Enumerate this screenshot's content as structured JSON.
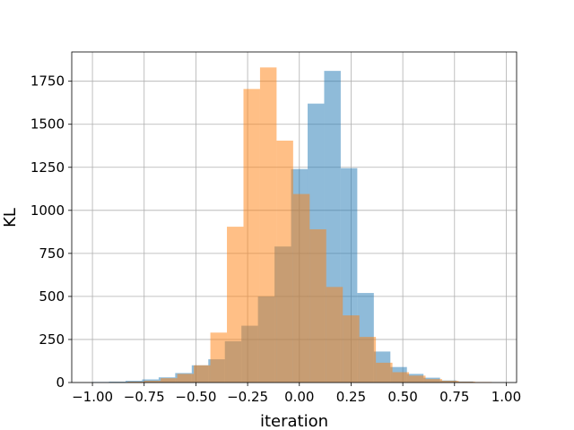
{
  "chart_data": {
    "type": "histogram",
    "xlabel": "iteration",
    "ylabel": "KL",
    "xlim": [
      -1.1,
      1.05
    ],
    "ylim": [
      0,
      1920
    ],
    "grid": true,
    "xticks": [
      -1.0,
      -0.75,
      -0.5,
      -0.25,
      0.0,
      0.25,
      0.5,
      0.75,
      1.0
    ],
    "xtick_labels": [
      "−1.00",
      "−0.75",
      "−0.50",
      "−0.25",
      "0.00",
      "0.25",
      "0.50",
      "0.75",
      "1.00"
    ],
    "yticks": [
      0,
      250,
      500,
      750,
      1000,
      1250,
      1500,
      1750
    ],
    "ytick_labels": [
      "0",
      "250",
      "500",
      "750",
      "1000",
      "1250",
      "1500",
      "1750"
    ],
    "series": [
      {
        "color": "#1f77b4",
        "opacity": 0.5,
        "bins": [
          {
            "x0": -1.0,
            "x1": -0.92,
            "value": 3
          },
          {
            "x0": -0.92,
            "x1": -0.84,
            "value": 5
          },
          {
            "x0": -0.84,
            "x1": -0.76,
            "value": 10
          },
          {
            "x0": -0.76,
            "x1": -0.68,
            "value": 18
          },
          {
            "x0": -0.68,
            "x1": -0.6,
            "value": 30
          },
          {
            "x0": -0.6,
            "x1": -0.52,
            "value": 55
          },
          {
            "x0": -0.52,
            "x1": -0.44,
            "value": 100
          },
          {
            "x0": -0.44,
            "x1": -0.36,
            "value": 135
          },
          {
            "x0": -0.36,
            "x1": -0.28,
            "value": 240
          },
          {
            "x0": -0.28,
            "x1": -0.2,
            "value": 330
          },
          {
            "x0": -0.2,
            "x1": -0.12,
            "value": 500
          },
          {
            "x0": -0.12,
            "x1": -0.04,
            "value": 790
          },
          {
            "x0": -0.04,
            "x1": 0.04,
            "value": 1240
          },
          {
            "x0": 0.04,
            "x1": 0.12,
            "value": 1620
          },
          {
            "x0": 0.12,
            "x1": 0.2,
            "value": 1810
          },
          {
            "x0": 0.2,
            "x1": 0.28,
            "value": 1245
          },
          {
            "x0": 0.28,
            "x1": 0.36,
            "value": 520
          },
          {
            "x0": 0.36,
            "x1": 0.44,
            "value": 180
          },
          {
            "x0": 0.44,
            "x1": 0.52,
            "value": 90
          },
          {
            "x0": 0.52,
            "x1": 0.6,
            "value": 50
          },
          {
            "x0": 0.6,
            "x1": 0.68,
            "value": 28
          },
          {
            "x0": 0.68,
            "x1": 0.76,
            "value": 12
          },
          {
            "x0": 0.76,
            "x1": 0.84,
            "value": 6
          }
        ]
      },
      {
        "color": "#ff7f0e",
        "opacity": 0.5,
        "bins": [
          {
            "x0": -0.91,
            "x1": -0.83,
            "value": 2
          },
          {
            "x0": -0.83,
            "x1": -0.75,
            "value": 5
          },
          {
            "x0": -0.75,
            "x1": -0.67,
            "value": 10
          },
          {
            "x0": -0.67,
            "x1": -0.59,
            "value": 25
          },
          {
            "x0": -0.59,
            "x1": -0.51,
            "value": 50
          },
          {
            "x0": -0.51,
            "x1": -0.43,
            "value": 100
          },
          {
            "x0": -0.43,
            "x1": -0.35,
            "value": 290
          },
          {
            "x0": -0.35,
            "x1": -0.27,
            "value": 905
          },
          {
            "x0": -0.27,
            "x1": -0.19,
            "value": 1705
          },
          {
            "x0": -0.19,
            "x1": -0.11,
            "value": 1830
          },
          {
            "x0": -0.11,
            "x1": -0.03,
            "value": 1405
          },
          {
            "x0": -0.03,
            "x1": 0.05,
            "value": 1095
          },
          {
            "x0": 0.05,
            "x1": 0.13,
            "value": 890
          },
          {
            "x0": 0.13,
            "x1": 0.21,
            "value": 555
          },
          {
            "x0": 0.21,
            "x1": 0.29,
            "value": 390
          },
          {
            "x0": 0.29,
            "x1": 0.37,
            "value": 265
          },
          {
            "x0": 0.37,
            "x1": 0.45,
            "value": 115
          },
          {
            "x0": 0.45,
            "x1": 0.53,
            "value": 60
          },
          {
            "x0": 0.53,
            "x1": 0.61,
            "value": 40
          },
          {
            "x0": 0.61,
            "x1": 0.69,
            "value": 20
          },
          {
            "x0": 0.69,
            "x1": 0.77,
            "value": 10
          },
          {
            "x0": 0.77,
            "x1": 0.85,
            "value": 5
          },
          {
            "x0": 0.85,
            "x1": 0.93,
            "value": 3
          }
        ]
      }
    ]
  }
}
